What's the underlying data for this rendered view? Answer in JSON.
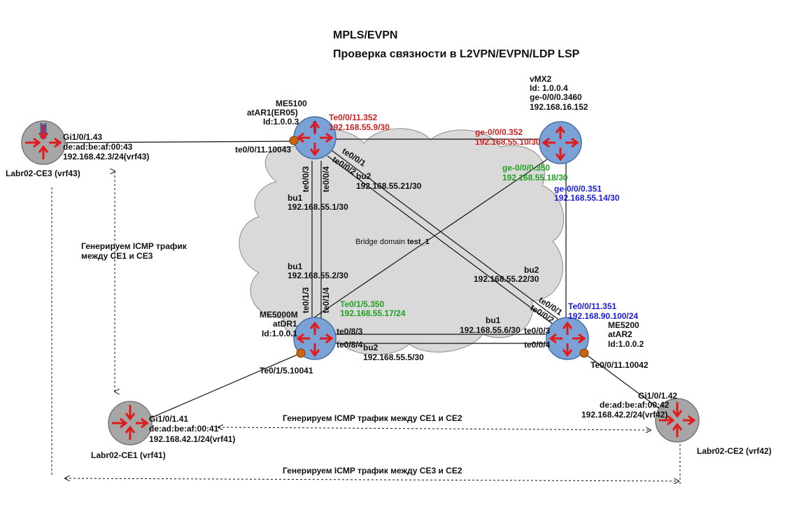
{
  "title": {
    "line1": "MPLS/EVPN",
    "line2": "Проверка связности в L2VPN/EVPN/LDP LSP"
  },
  "cloud_label": {
    "prefix": "Bridge domain ",
    "name": "test_1"
  },
  "routers": {
    "atar1": {
      "l1": "ME5100",
      "l2": "atAR1(ER05)",
      "l3": "Id:1.0.0.3"
    },
    "vmx2": {
      "l1": "vMX2",
      "l2": "Id: 1.0.0.4",
      "l3": "ge-0/0/0.3460",
      "l4": "192.168.16.152"
    },
    "atdr1": {
      "l1": "ME5000M",
      "l2": "atDR1",
      "l3": "Id:1.0.0.1"
    },
    "atar2": {
      "l1": "ME5200",
      "l2": "atAR2",
      "l3": "Id:1.0.0.2"
    }
  },
  "ce": {
    "ce3": {
      "name": "Labr02-CE3 (vrf43)",
      "if": "Gi1/0/1.43",
      "mac": "de:ad:be:af:00:43",
      "ip": "192.168.42.3/24(vrf43)"
    },
    "ce1": {
      "name": "Labr02-CE1 (vrf41)",
      "if": "Gi1/0/1.41",
      "mac": "de:ad:be:af:00:41",
      "ip": "192.168.42.1/24(vrf41)"
    },
    "ce2": {
      "name": "Labr02-CE2 (vrf42)",
      "if": "Gi1/0/1.42",
      "mac": "de:ad:be:af:00:42",
      "ip": "192.168.42.2/24(vrf42)"
    }
  },
  "labels": {
    "ar1_te_sub": "te0/0/11.10043",
    "ar1_red_if": "Te0/0/11.352",
    "ar1_red_ip": "192.168.55.9/30",
    "vmx_red_if": "ge-0/0/0.352",
    "vmx_red_ip": "192.168.55.10/30",
    "vmx_green_if": "ge-0/0/0.350",
    "vmx_green_ip": "192.168.55.18/30",
    "vmx_blue_if": "ge-0/0/0.351",
    "vmx_blue_ip": "192.168.55.14/30",
    "ar1_te01": "te0/0/1",
    "ar1_te02": "te0/0/2",
    "ar1_te03": "te0/0/3",
    "ar1_te04": "te0/0/4",
    "bu2_top": "bu2",
    "bu2_top_ip": "192.168.55.21/30",
    "bu1_top": "bu1",
    "bu1_top_ip": "192.168.55.1/30",
    "bu1_mid": "bu1",
    "bu1_mid_ip": "192.168.55.2/30",
    "dr1_te13": "te0/1/3",
    "dr1_te14": "te0/1/4",
    "dr1_green_if": "Te0/1/5.350",
    "dr1_green_ip": "192.168.55.17/24",
    "dr1_te83": "te0/8/3",
    "dr1_te84": "te0/8/4",
    "dr1_te_sub": "Te0/1/5.10041",
    "bu2_bottom": "bu2",
    "bu2_bottom_ip": "192.168.55.5/30",
    "bu1_right": "bu1",
    "bu1_right_ip": "192.168.55.6/30",
    "bu2_right": "bu2",
    "bu2_right_ip": "192.168.55.22/30",
    "ar2_te01": "te0/0/1",
    "ar2_te02": "te0/0/2",
    "ar2_te03": "te0/0/3",
    "ar2_te04": "te0/0/4",
    "ar2_blue_if": "Te0/0/11.351",
    "ar2_blue_ip": "192.168.90.100/24",
    "ar2_te_sub": "Te0/0/11.10042"
  },
  "notes": {
    "ce1_ce3_l1": "Генерируем ICMP трафик",
    "ce1_ce3_l2": "между CE1 и CE3",
    "ce1_ce2": "Генерируем ICMP трафик между CE1 и CE2",
    "ce3_ce2": "Генерируем ICMP трафик между CE3 и CE2"
  },
  "colors": {
    "router_fill": "#7ba2d6",
    "ce_fill": "#a6a6a6",
    "arrow": "#e21a1a",
    "cloud": "#d9d9d9",
    "port": "#c8650f",
    "red_text": "#cc2222",
    "green_text": "#22a022",
    "blue_text": "#1a1adc"
  },
  "icons": {
    "router": "router-icon",
    "ce": "ce-router-icon",
    "port": "port-dot-icon",
    "cloud": "cloud-icon"
  }
}
